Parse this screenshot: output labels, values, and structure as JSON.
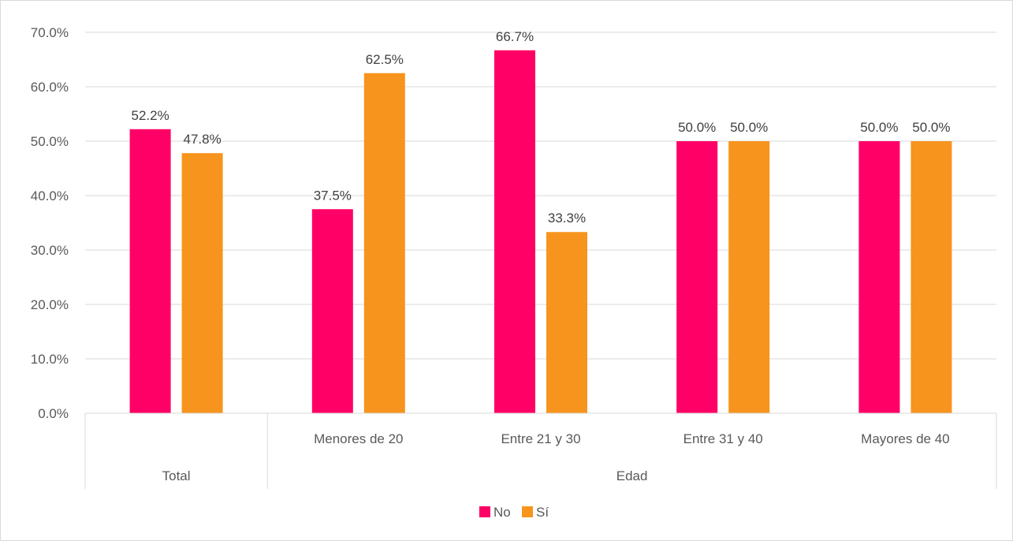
{
  "chart_data": {
    "type": "bar",
    "ylim": [
      0,
      0.7
    ],
    "y_ticks": [
      "0.0%",
      "10.0%",
      "20.0%",
      "30.0%",
      "40.0%",
      "50.0%",
      "60.0%",
      "70.0%"
    ],
    "tick_step": 0.1,
    "grid": true,
    "legend_position": "bottom",
    "categories": [
      "",
      "Menores de 20",
      "Entre 21 y 30",
      "Entre 31 y 40",
      "Mayores de 40"
    ],
    "groups": [
      {
        "label": "Total",
        "span": 1
      },
      {
        "label": "Edad",
        "span": 4
      }
    ],
    "series": [
      {
        "name": "No",
        "color": "#FF0066",
        "values": [
          0.522,
          0.375,
          0.667,
          0.5,
          0.5
        ],
        "labels": [
          "52.2%",
          "37.5%",
          "66.7%",
          "50.0%",
          "50.0%"
        ]
      },
      {
        "name": "Sí",
        "color": "#F7941D",
        "values": [
          0.478,
          0.625,
          0.333,
          0.5,
          0.5
        ],
        "labels": [
          "47.8%",
          "62.5%",
          "33.3%",
          "50.0%",
          "50.0%"
        ]
      }
    ]
  }
}
